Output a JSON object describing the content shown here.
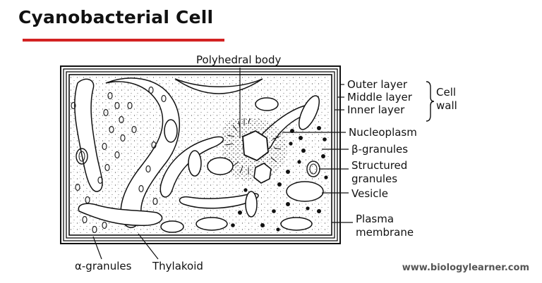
{
  "title": "Cyanobacterial Cell",
  "accent_color": "#d32222",
  "labels": {
    "polyhedral_body": "Polyhedral body",
    "outer_layer": "Outer layer",
    "middle_layer": "Middle layer",
    "inner_layer": "Inner layer",
    "cell_wall_1": "Cell",
    "cell_wall_2": "wall",
    "nucleoplasm": "Nucleoplasm",
    "beta_granules": "β-granules",
    "structured_granules_1": "Structured",
    "structured_granules_2": "granules",
    "vesicle": "Vesicle",
    "plasma_membrane_1": "Plasma",
    "plasma_membrane_2": "membrane",
    "alpha_granules": "α-granules",
    "thylakoid": "Thylakoid"
  },
  "website": "www.biologylearner.com"
}
